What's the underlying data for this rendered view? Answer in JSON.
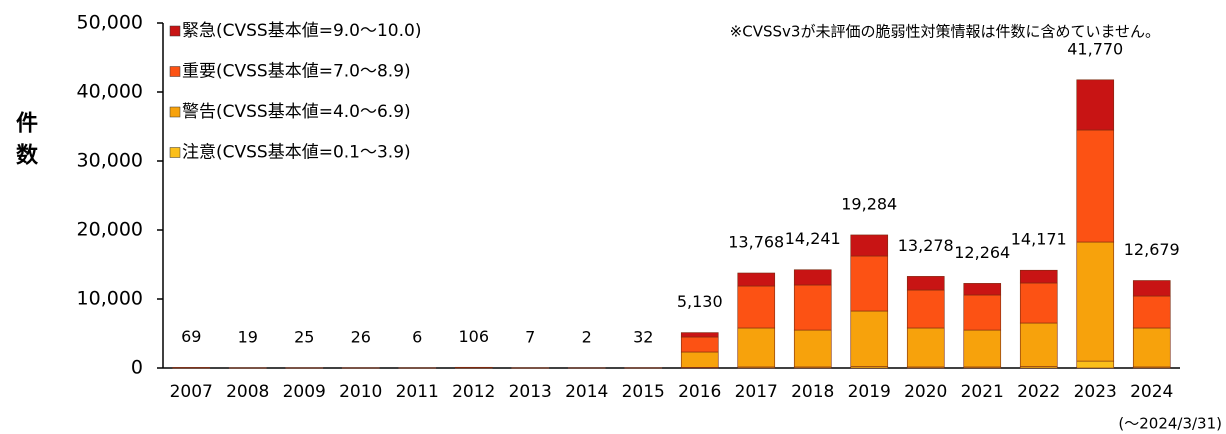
{
  "chart_data": {
    "type": "stacked-bar",
    "ylabel": "件数",
    "note": "※CVSSv3が未評価の脆弱性対策情報は件数に含めていません。",
    "date_note": "(〜2024/3/31)",
    "categories": [
      "2007",
      "2008",
      "2009",
      "2010",
      "2011",
      "2012",
      "2013",
      "2014",
      "2015",
      "2016",
      "2017",
      "2018",
      "2019",
      "2020",
      "2021",
      "2022",
      "2023",
      "2024"
    ],
    "series": [
      {
        "name": "注意(CVSS基本値=0.1〜3.9)",
        "color": "#fbbf1a",
        "values": [
          5,
          2,
          3,
          3,
          1,
          10,
          1,
          0,
          3,
          100,
          150,
          150,
          200,
          150,
          150,
          200,
          1000,
          150
        ]
      },
      {
        "name": "警告(CVSS基本値=4.0〜6.9)",
        "color": "#f7a20c",
        "values": [
          30,
          8,
          12,
          12,
          3,
          50,
          3,
          1,
          15,
          2220,
          5650,
          5350,
          8060,
          5650,
          5350,
          6320,
          17260,
          5650
        ]
      },
      {
        "name": "重要(CVSS基本値=7.0〜8.9)",
        "color": "#fc5214",
        "values": [
          24,
          7,
          8,
          8,
          2,
          36,
          2,
          1,
          10,
          2170,
          6080,
          6530,
          7970,
          5500,
          5080,
          5800,
          16230,
          4630
        ]
      },
      {
        "name": "緊急(CVSS基本値=9.0〜10.0)",
        "color": "#c81414",
        "values": [
          10,
          2,
          2,
          3,
          0,
          10,
          1,
          0,
          4,
          640,
          1888,
          2211,
          3054,
          1978,
          1684,
          1851,
          7280,
          2249
        ]
      }
    ],
    "totals": [
      69,
      19,
      25,
      26,
      6,
      106,
      7,
      2,
      32,
      5130,
      13768,
      14241,
      19284,
      13278,
      12264,
      14171,
      41770,
      12679
    ],
    "total_labels": [
      "69",
      "19",
      "25",
      "26",
      "6",
      "106",
      "7",
      "2",
      "32",
      "5,130",
      "13,768",
      "14,241",
      "19,284",
      "13,278",
      "12,264",
      "14,171",
      "41,770",
      "12,679"
    ],
    "ylim": [
      0,
      50000
    ],
    "yticks": [
      0,
      {
        "value": 10000,
        "label": "10,000"
      },
      {
        "value": 20000,
        "label": "20,000"
      },
      {
        "value": 30000,
        "label": "30,000"
      },
      {
        "value": 40000,
        "label": "40,000"
      },
      {
        "value": 50000,
        "label": "50,000"
      }
    ],
    "grid": false,
    "legend": "top-left"
  }
}
